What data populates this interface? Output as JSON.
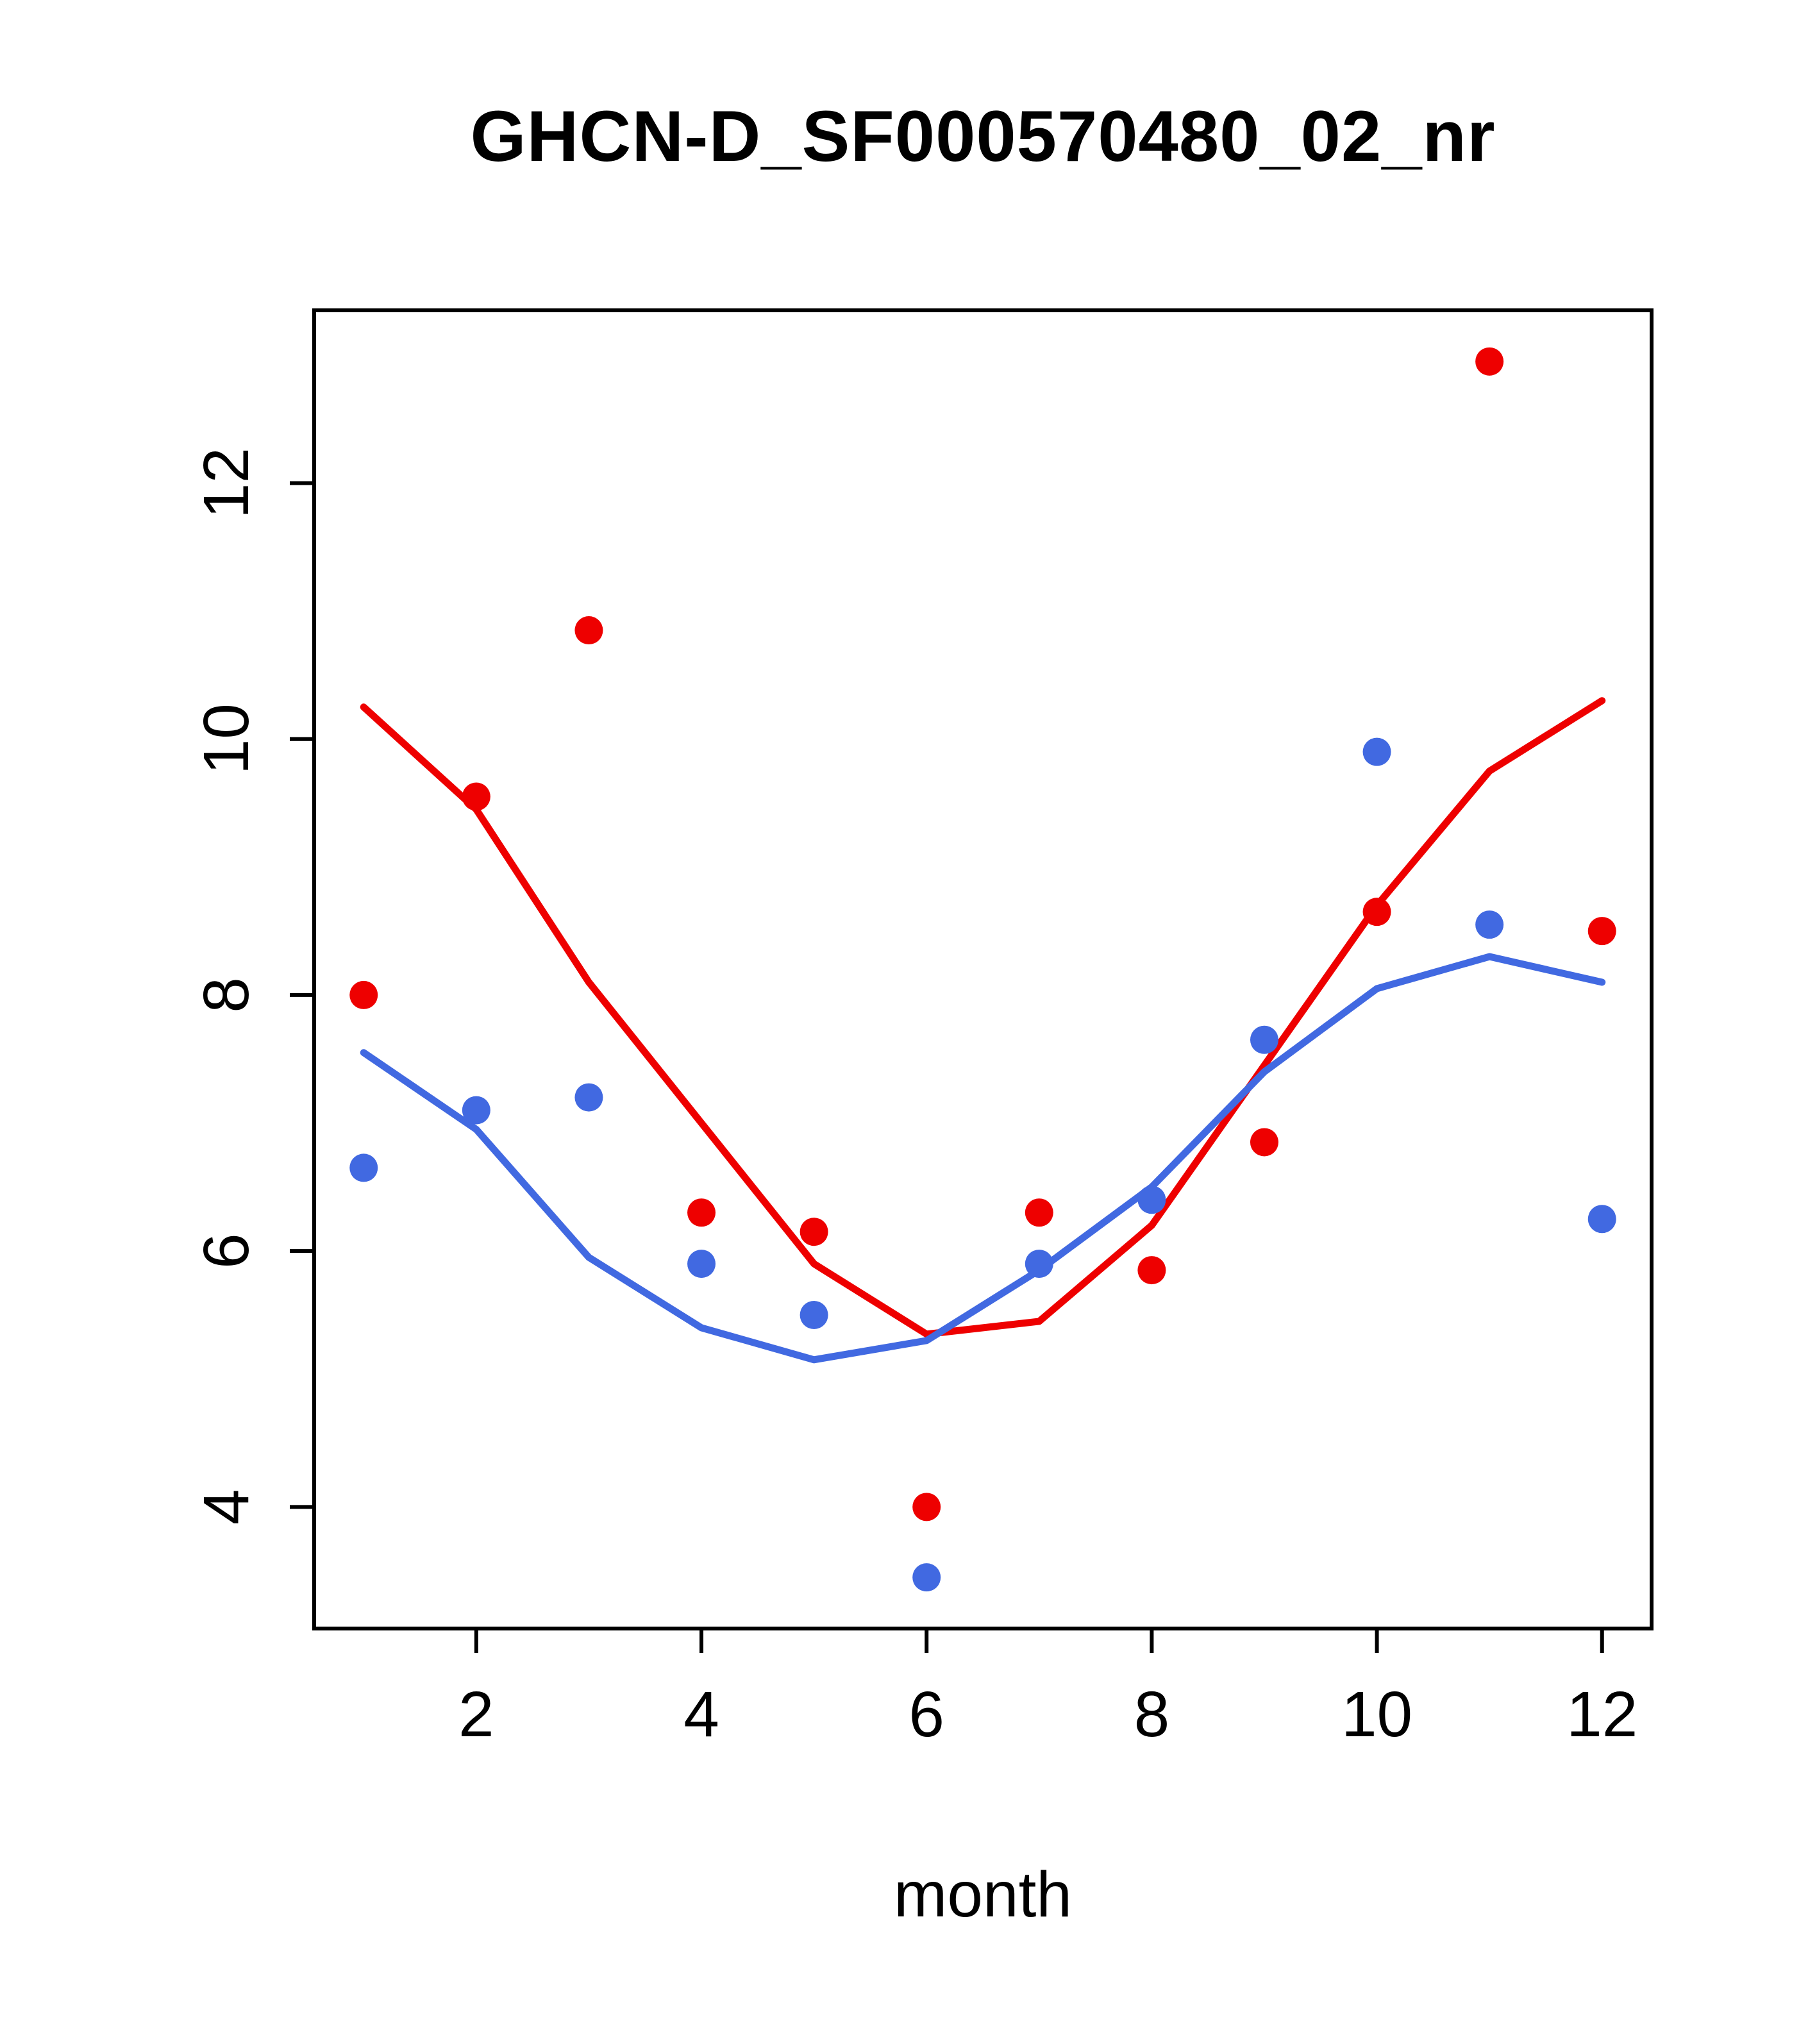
{
  "chart_data": {
    "type": "scatter",
    "title": "GHCN-D_SF000570480_02_nr",
    "xlabel": "month",
    "ylabel": "",
    "xlim": [
      0.56,
      12.44
    ],
    "ylim": [
      3.05,
      13.35
    ],
    "xticks": [
      2,
      4,
      6,
      8,
      10,
      12
    ],
    "yticks": [
      4,
      6,
      8,
      10,
      12
    ],
    "grid": false,
    "legend": "none",
    "x": [
      1,
      2,
      3,
      4,
      5,
      6,
      7,
      8,
      9,
      10,
      11,
      12
    ],
    "series": [
      {
        "name": "red-points",
        "type": "points",
        "color": "#ee0000",
        "values": [
          8.0,
          9.55,
          10.85,
          6.3,
          6.15,
          4.0,
          6.3,
          5.85,
          6.85,
          8.65,
          12.95,
          8.5
        ]
      },
      {
        "name": "blue-points",
        "type": "points",
        "color": "#4169e1",
        "values": [
          6.65,
          7.1,
          7.2,
          5.9,
          5.5,
          3.45,
          5.9,
          6.4,
          7.65,
          9.9,
          8.55,
          6.25
        ]
      },
      {
        "name": "red-trend-line",
        "type": "line",
        "color": "#ee0000",
        "values": [
          10.25,
          9.45,
          8.1,
          7.0,
          5.9,
          5.35,
          5.45,
          6.2,
          7.45,
          8.7,
          9.75,
          10.3
        ]
      },
      {
        "name": "blue-trend-line",
        "type": "line",
        "color": "#4169e1",
        "values": [
          7.55,
          6.95,
          5.95,
          5.4,
          5.15,
          5.3,
          5.85,
          6.5,
          7.4,
          8.05,
          8.3,
          8.1
        ]
      }
    ],
    "colors": {
      "red": "#ee0000",
      "blue": "#4169e1",
      "axis": "#000000",
      "background": "#ffffff"
    }
  }
}
